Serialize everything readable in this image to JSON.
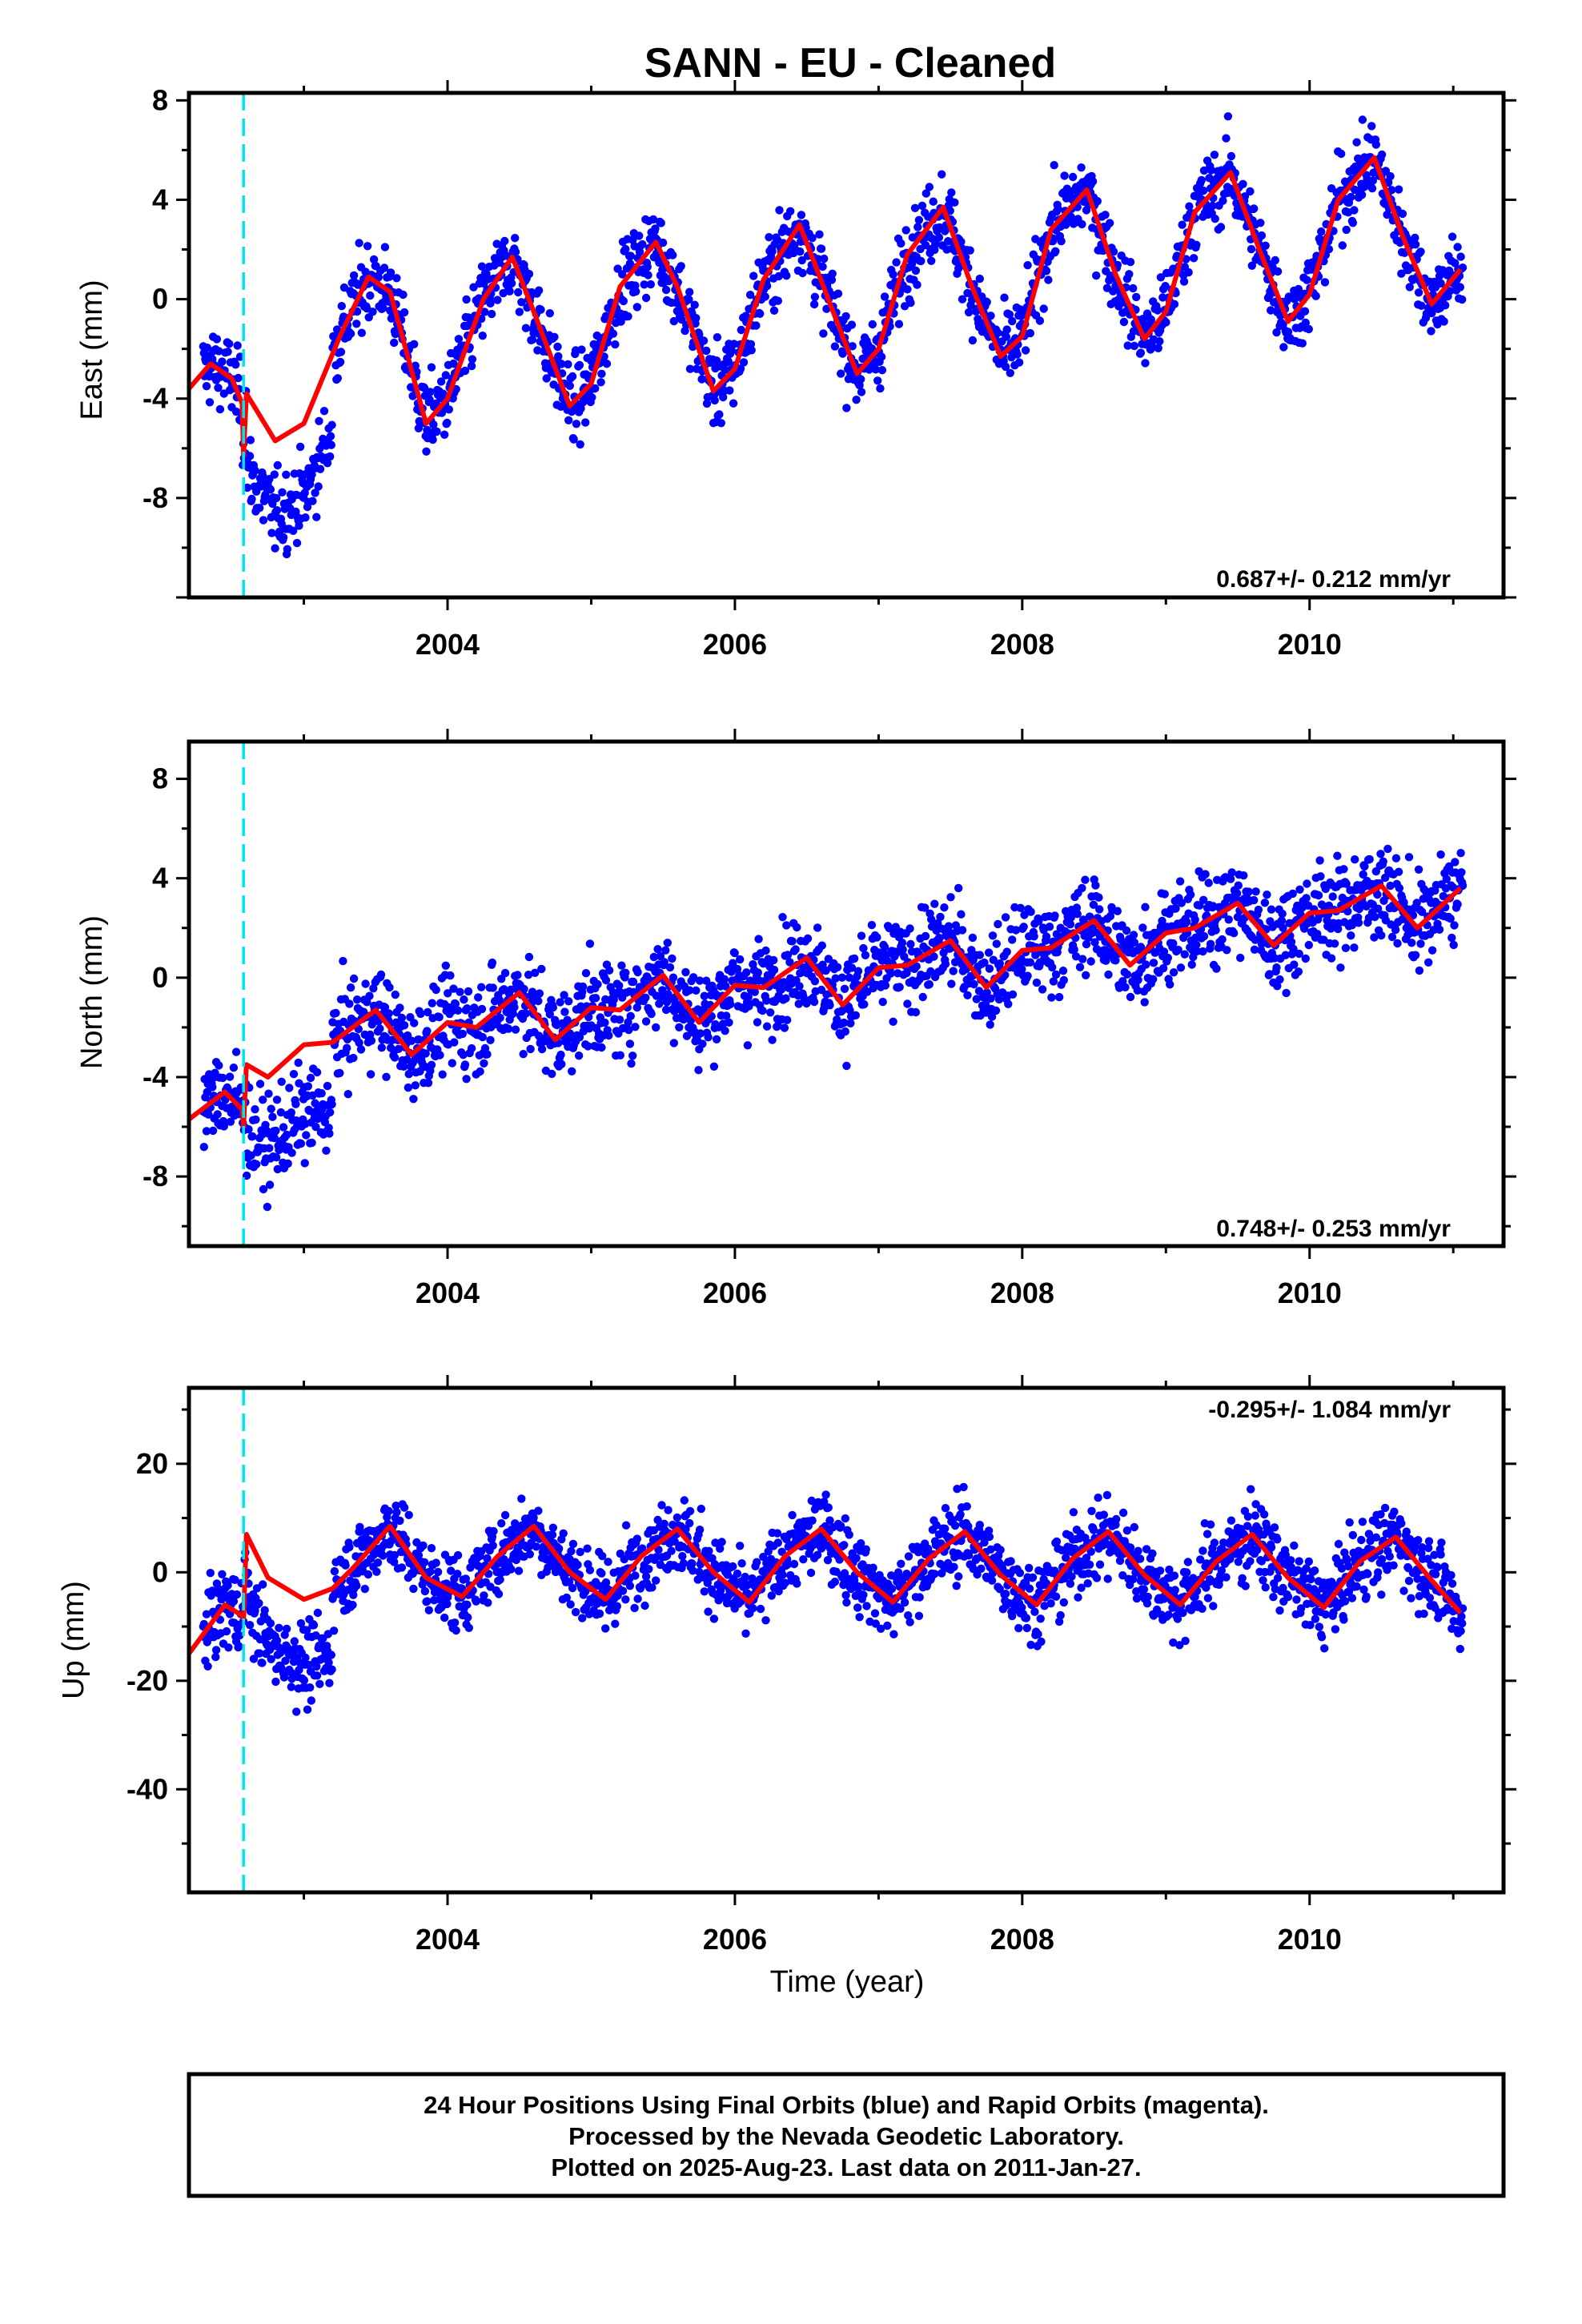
{
  "chart_data": [
    {
      "type": "scatter",
      "title": "SANN  - EU - Cleaned",
      "ylabel": "East (mm)",
      "xlabel": "",
      "xlim": [
        2002.2,
        2011.35
      ],
      "ylim": [
        -12,
        8.3
      ],
      "xticks": [
        "2004",
        "2006",
        "2008",
        "2010"
      ],
      "yticks": [
        "8",
        "4",
        "0",
        "-4",
        "-8"
      ],
      "rate_label": "0.687+/- 0.212 mm/yr",
      "colors": {
        "points": "#0000ff",
        "model": "#ff0000",
        "event": "#00e5ee"
      },
      "event_line_x": 2002.58,
      "series": [
        {
          "name": "24 Hour Positions",
          "trend": 0.687,
          "offset": -2.6,
          "amplitude": 3.6,
          "phase_peak": 0.46,
          "scatter": 1.1
        }
      ],
      "model_points": [
        [
          2002.2,
          -3.6
        ],
        [
          2002.35,
          -2.6
        ],
        [
          2002.5,
          -3.2
        ],
        [
          2002.57,
          -4.2
        ],
        [
          2002.58,
          -6.3
        ],
        [
          2002.6,
          -3.8
        ],
        [
          2002.8,
          -5.7
        ],
        [
          2003.0,
          -5.0
        ],
        [
          2003.25,
          -1.5
        ],
        [
          2003.45,
          0.9
        ],
        [
          2003.6,
          0.3
        ],
        [
          2003.85,
          -5.0
        ],
        [
          2004.0,
          -4.0
        ],
        [
          2004.25,
          0.0
        ],
        [
          2004.45,
          1.7
        ],
        [
          2004.6,
          -0.5
        ],
        [
          2004.85,
          -4.3
        ],
        [
          2005.0,
          -3.4
        ],
        [
          2005.2,
          0.5
        ],
        [
          2005.45,
          2.3
        ],
        [
          2005.6,
          0.5
        ],
        [
          2005.85,
          -3.7
        ],
        [
          2006.0,
          -2.8
        ],
        [
          2006.2,
          0.8
        ],
        [
          2006.45,
          3.0
        ],
        [
          2006.65,
          0.0
        ],
        [
          2006.85,
          -3.0
        ],
        [
          2007.0,
          -2.0
        ],
        [
          2007.2,
          1.8
        ],
        [
          2007.45,
          3.7
        ],
        [
          2007.65,
          0.5
        ],
        [
          2007.85,
          -2.3
        ],
        [
          2008.0,
          -1.5
        ],
        [
          2008.2,
          2.8
        ],
        [
          2008.45,
          4.4
        ],
        [
          2008.65,
          1.0
        ],
        [
          2008.85,
          -1.6
        ],
        [
          2009.0,
          -0.5
        ],
        [
          2009.2,
          3.5
        ],
        [
          2009.45,
          5.1
        ],
        [
          2009.65,
          2.0
        ],
        [
          2009.85,
          -0.9
        ],
        [
          2010.0,
          0.2
        ],
        [
          2010.2,
          4.0
        ],
        [
          2010.45,
          5.7
        ],
        [
          2010.65,
          2.5
        ],
        [
          2010.85,
          -0.2
        ],
        [
          2011.05,
          1.2
        ]
      ]
    },
    {
      "type": "scatter",
      "title": "",
      "ylabel": "North (mm)",
      "xlabel": "",
      "xlim": [
        2002.2,
        2011.35
      ],
      "ylim": [
        -10.8,
        9.5
      ],
      "xticks": [
        "2004",
        "2006",
        "2008",
        "2010"
      ],
      "yticks": [
        "8",
        "4",
        "0",
        "-4",
        "-8"
      ],
      "rate_label": "0.748+/- 0.253 mm/yr",
      "event_line_x": 2002.58,
      "series": [
        {
          "name": "24 Hour Positions",
          "trend": 0.748,
          "offset": -2.5,
          "amplitude": 0.9,
          "phase_peak": 0.55,
          "scatter": 1.3
        }
      ],
      "model_points": [
        [
          2002.2,
          -5.7
        ],
        [
          2002.45,
          -4.6
        ],
        [
          2002.57,
          -5.3
        ],
        [
          2002.58,
          -6.0
        ],
        [
          2002.6,
          -3.5
        ],
        [
          2002.75,
          -4.0
        ],
        [
          2003.0,
          -2.7
        ],
        [
          2003.2,
          -2.6
        ],
        [
          2003.5,
          -1.3
        ],
        [
          2003.75,
          -3.1
        ],
        [
          2004.0,
          -1.8
        ],
        [
          2004.2,
          -2.0
        ],
        [
          2004.5,
          -0.6
        ],
        [
          2004.75,
          -2.5
        ],
        [
          2005.0,
          -1.2
        ],
        [
          2005.2,
          -1.3
        ],
        [
          2005.5,
          0.1
        ],
        [
          2005.75,
          -1.8
        ],
        [
          2006.0,
          -0.3
        ],
        [
          2006.2,
          -0.4
        ],
        [
          2006.5,
          0.8
        ],
        [
          2006.75,
          -1.1
        ],
        [
          2007.0,
          0.4
        ],
        [
          2007.2,
          0.5
        ],
        [
          2007.5,
          1.5
        ],
        [
          2007.75,
          -0.4
        ],
        [
          2008.0,
          1.1
        ],
        [
          2008.2,
          1.2
        ],
        [
          2008.5,
          2.3
        ],
        [
          2008.75,
          0.5
        ],
        [
          2009.0,
          1.8
        ],
        [
          2009.2,
          2.0
        ],
        [
          2009.5,
          3.0
        ],
        [
          2009.75,
          1.3
        ],
        [
          2010.0,
          2.6
        ],
        [
          2010.2,
          2.7
        ],
        [
          2010.5,
          3.7
        ],
        [
          2010.75,
          2.0
        ],
        [
          2011.05,
          3.6
        ]
      ]
    },
    {
      "type": "scatter",
      "title": "",
      "ylabel": "Up (mm)",
      "xlabel": "Time (year)",
      "xlim": [
        2002.2,
        2011.35
      ],
      "ylim": [
        -59,
        34
      ],
      "xticks": [
        "2004",
        "2006",
        "2008",
        "2010"
      ],
      "yticks": [
        "20",
        "0",
        "-20",
        "-40"
      ],
      "rate_label": "-0.295+/- 1.084 mm/yr",
      "event_line_x": 2002.58,
      "series": [
        {
          "name": "24 Hour Positions",
          "trend": -0.295,
          "offset": 1.0,
          "amplitude": 7.5,
          "phase_peak": 0.58,
          "scatter": 5.0
        }
      ],
      "model_points": [
        [
          2002.2,
          -15.0
        ],
        [
          2002.45,
          -6.0
        ],
        [
          2002.57,
          -8.0
        ],
        [
          2002.58,
          -8.5
        ],
        [
          2002.6,
          7.0
        ],
        [
          2002.75,
          -1.0
        ],
        [
          2003.0,
          -5.0
        ],
        [
          2003.2,
          -3.0
        ],
        [
          2003.35,
          1.0
        ],
        [
          2003.6,
          8.5
        ],
        [
          2003.85,
          -1.0
        ],
        [
          2004.1,
          -4.5
        ],
        [
          2004.35,
          3.0
        ],
        [
          2004.6,
          8.5
        ],
        [
          2004.85,
          0.0
        ],
        [
          2005.1,
          -5.0
        ],
        [
          2005.35,
          3.0
        ],
        [
          2005.6,
          8.0
        ],
        [
          2005.85,
          0.0
        ],
        [
          2006.1,
          -5.5
        ],
        [
          2006.35,
          3.0
        ],
        [
          2006.6,
          8.0
        ],
        [
          2006.85,
          0.0
        ],
        [
          2007.1,
          -5.5
        ],
        [
          2007.35,
          2.5
        ],
        [
          2007.6,
          7.5
        ],
        [
          2007.85,
          -0.5
        ],
        [
          2008.1,
          -6.0
        ],
        [
          2008.35,
          2.5
        ],
        [
          2008.6,
          7.5
        ],
        [
          2008.85,
          -0.5
        ],
        [
          2009.1,
          -6.0
        ],
        [
          2009.35,
          2.0
        ],
        [
          2009.6,
          7.0
        ],
        [
          2009.85,
          -1.0
        ],
        [
          2010.1,
          -6.5
        ],
        [
          2010.35,
          2.0
        ],
        [
          2010.6,
          6.5
        ],
        [
          2010.85,
          -1.5
        ],
        [
          2011.05,
          -7.5
        ]
      ]
    }
  ],
  "footer": {
    "line1": "24 Hour Positions Using Final Orbits (blue) and Rapid Orbits (magenta).",
    "line2": "Processed by the Nevada Geodetic Laboratory.",
    "line3": "Plotted on 2025-Aug-23. Last data on 2011-Jan-27."
  }
}
